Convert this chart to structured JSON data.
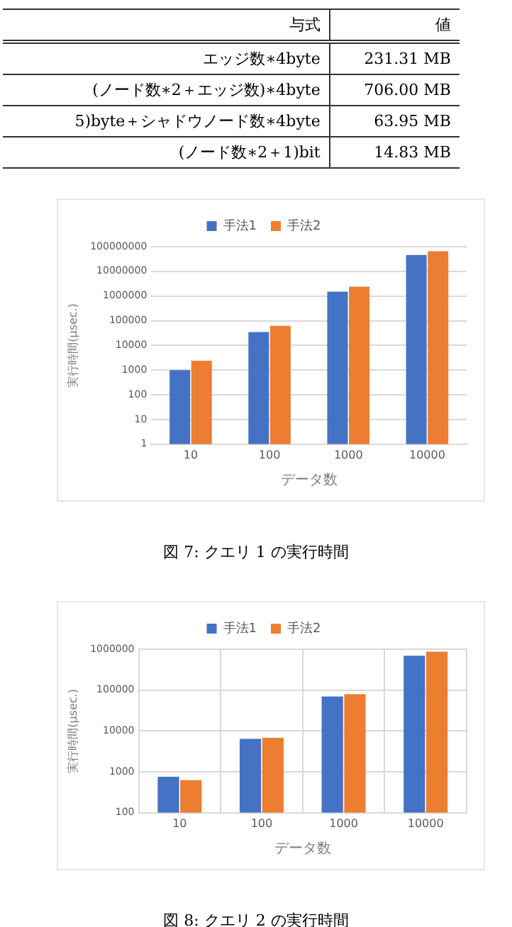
{
  "chart_data": [
    {
      "type": "other",
      "annotations": [
        "与式",
        "値",
        "エッジ数∗4byte",
        "231.31 MB",
        "(ノード数∗2＋エッジ数)∗4byte",
        "706.00 MB",
        "5)byte＋シャドウノード数∗4byte",
        "63.95 MB",
        "(ノード数∗2＋1)bit",
        "14.83 MB"
      ]
    },
    {
      "type": "bar",
      "categories": [
        "10",
        "100",
        "1000",
        "10000"
      ],
      "xlabel": "データ数",
      "ylabel": "実行時間(μsec.)",
      "log": "y",
      "ylim": [
        1,
        100000000
      ],
      "yticks": [
        1,
        10,
        100,
        1000,
        10000,
        100000,
        1000000,
        10000000,
        100000000
      ],
      "grid": "y",
      "legend": "top",
      "annotations": [
        "図 7: クエリ 1 の実行時間"
      ],
      "series": [
        {
          "name": "手法1",
          "color": "#4472c4",
          "values": [
            1000,
            35000,
            1500000,
            46000000
          ]
        },
        {
          "name": "手法2",
          "color": "#ed7d31",
          "values": [
            2400,
            62000,
            2400000,
            65000000
          ]
        }
      ]
    },
    {
      "type": "bar",
      "categories": [
        "10",
        "100",
        "1000",
        "10000"
      ],
      "xlabel": "データ数",
      "ylabel": "実行時間(μsec.)",
      "log": "y",
      "ylim": [
        100,
        1000000
      ],
      "yticks": [
        100,
        1000,
        10000,
        100000,
        1000000
      ],
      "grid": true,
      "legend": "top",
      "annotations": [
        "図 8: クエリ 2 の実行時間"
      ],
      "series": [
        {
          "name": "手法1",
          "color": "#4472c4",
          "values": [
            760,
            6400,
            70000,
            690000
          ]
        },
        {
          "name": "手法2",
          "color": "#ed7d31",
          "values": [
            630,
            6800,
            79000,
            870000
          ]
        }
      ]
    }
  ]
}
